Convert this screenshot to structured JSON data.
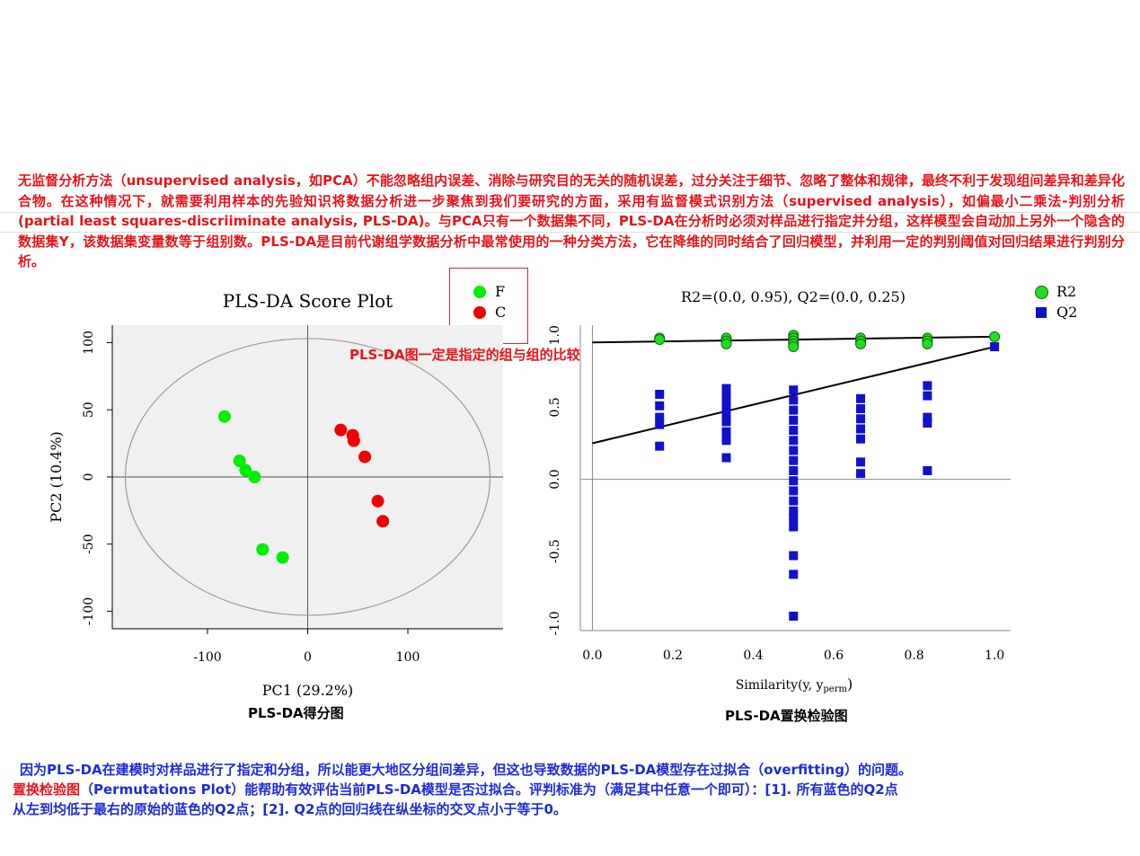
{
  "text": {
    "intro": "无监督分析方法（unsupervised analysis，如PCA）不能忽略组内误差、消除与研究目的无关的随机误差，过分关注于细节、忽略了整体和规律，最终不利于发现组间差异和差异化合物。在这种情况下，就需要利用样本的先验知识将数据分析进一步聚焦到我们要研究的方面，采用有监督模式识别方法（supervised analysis），如偏最小二乘法-判别分析(partial least squares-discriiminate analysis, PLS-DA)。与PCA只有一个数据集不同，PLS-DA在分析时必须对样品进行指定并分组，这样模型会自动加上另外一个隐含的数据集Y，该数据集变量数等于组别数。PLS-DA是目前代谢组学数据分析中最常使用的一种分类方法，它在降维的同时结合了回归模型，并利用一定的判别阈值对回归结果进行判别分析。",
    "annotation": "PLS-DA图一定是指定的组与组的比较",
    "caption_left": "PLS-DA得分图",
    "caption_right": "PLS-DA置换检验图",
    "bottom_line1": "因为PLS-DA在建模时对样品进行了指定和分组，所以能更大地区分组间差异，但这也导致数据的PLS-DA模型存在过拟合（overfitting）的问题。",
    "bottom_line2_colored": "置换检验图",
    "bottom_line2_rest": "（Permutations Plot）能帮助有效评估当前PLS-DA模型是否过拟合。评判标准为（满足其中任意一个即可）：[1]. 所有蓝色的Q2点",
    "bottom_line3": "从左到均低于最右的原始的蓝色的Q2点；[2]. Q2点的回归线在纵坐标的交叉点小于等于0。"
  },
  "colors": {
    "red_text": "#e8141b",
    "blue_text": "#1f2bd6",
    "group_F": "#00ee00",
    "group_C": "#ee0000",
    "R2": "#22dd22",
    "Q2": "#1111cc",
    "panel_bg": "#f0f0f0"
  },
  "chart_data": [
    {
      "type": "scatter",
      "title": "PLS-DA Score Plot",
      "xlabel": "PC1 (29.2%)",
      "ylabel": "PC2 (10.4%)",
      "xlim": [
        -195,
        195
      ],
      "ylim": [
        -113,
        113
      ],
      "xticks": [
        -100,
        0,
        100
      ],
      "yticks": [
        100,
        50,
        0,
        -50,
        -100
      ],
      "ellipse": {
        "cx": 0,
        "cy": 0,
        "rx": 182,
        "ry": 103
      },
      "grid": false,
      "legend_position": "top-right",
      "series": [
        {
          "name": "F",
          "color": "#00ee00",
          "points": [
            [
              -83,
              45
            ],
            [
              -68,
              12
            ],
            [
              -62,
              5
            ],
            [
              -53,
              0
            ],
            [
              -45,
              -54
            ],
            [
              -25,
              -60
            ]
          ]
        },
        {
          "name": "C",
          "color": "#ee0000",
          "points": [
            [
              33,
              35
            ],
            [
              45,
              31
            ],
            [
              46,
              27
            ],
            [
              57,
              15
            ],
            [
              70,
              -18
            ],
            [
              75,
              -33
            ]
          ]
        }
      ]
    },
    {
      "type": "scatter",
      "title": "R2=(0.0, 0.95), Q2=(0.0, 0.25)",
      "xlabel": "Similarity(y, yperm)",
      "xlabel_main": "Similarity(y, y",
      "xlabel_sub": "perm",
      "xlabel_close": ")",
      "ylabel": "",
      "xlim": [
        -0.03,
        1.04
      ],
      "ylim": [
        -1.05,
        1.07
      ],
      "xticks": [
        0.0,
        0.2,
        0.4,
        0.6,
        0.8,
        1.0
      ],
      "xtick_labels": [
        "0.0",
        "0.2",
        "0.4",
        "0.6",
        "0.8",
        "1.0"
      ],
      "yticks": [
        1.0,
        0.5,
        0.0,
        -0.5,
        -1.0
      ],
      "ytick_labels": [
        "1.0",
        "0.5",
        "0.0",
        "-0.5",
        "-1.0"
      ],
      "legend_position": "top-right",
      "regression_lines": [
        {
          "name": "R2",
          "intercept": 0.95,
          "end": [
            1.0,
            0.99
          ]
        },
        {
          "name": "Q2",
          "intercept": 0.25,
          "end": [
            1.0,
            0.92
          ]
        }
      ],
      "series": [
        {
          "name": "R2",
          "marker": "circle",
          "color": "#22dd22",
          "points": [
            [
              0.167,
              0.98
            ],
            [
              0.167,
              0.97
            ],
            [
              0.333,
              0.98
            ],
            [
              0.333,
              0.96
            ],
            [
              0.333,
              0.94
            ],
            [
              0.5,
              1.0
            ],
            [
              0.5,
              0.98
            ],
            [
              0.5,
              0.96
            ],
            [
              0.5,
              0.94
            ],
            [
              0.5,
              0.92
            ],
            [
              0.667,
              0.98
            ],
            [
              0.667,
              0.96
            ],
            [
              0.667,
              0.94
            ],
            [
              0.833,
              0.98
            ],
            [
              0.833,
              0.96
            ],
            [
              0.833,
              0.94
            ],
            [
              1.0,
              0.99
            ]
          ]
        },
        {
          "name": "Q2",
          "marker": "square",
          "color": "#1111cc",
          "points": [
            [
              0.167,
              0.59
            ],
            [
              0.167,
              0.51
            ],
            [
              0.167,
              0.43
            ],
            [
              0.167,
              0.38
            ],
            [
              0.167,
              0.23
            ],
            [
              0.333,
              0.63
            ],
            [
              0.333,
              0.58
            ],
            [
              0.333,
              0.52
            ],
            [
              0.333,
              0.46
            ],
            [
              0.333,
              0.4
            ],
            [
              0.333,
              0.33
            ],
            [
              0.333,
              0.27
            ],
            [
              0.333,
              0.15
            ],
            [
              0.5,
              0.62
            ],
            [
              0.5,
              0.55
            ],
            [
              0.5,
              0.48
            ],
            [
              0.5,
              0.41
            ],
            [
              0.5,
              0.34
            ],
            [
              0.5,
              0.27
            ],
            [
              0.5,
              0.2
            ],
            [
              0.5,
              0.13
            ],
            [
              0.5,
              0.06
            ],
            [
              0.5,
              -0.01
            ],
            [
              0.5,
              -0.08
            ],
            [
              0.5,
              -0.15
            ],
            [
              0.5,
              -0.22
            ],
            [
              0.5,
              -0.27
            ],
            [
              0.5,
              -0.33
            ],
            [
              0.5,
              -0.53
            ],
            [
              0.5,
              -0.66
            ],
            [
              0.5,
              -0.95
            ],
            [
              0.667,
              0.56
            ],
            [
              0.667,
              0.49
            ],
            [
              0.667,
              0.42
            ],
            [
              0.667,
              0.35
            ],
            [
              0.667,
              0.28
            ],
            [
              0.667,
              0.12
            ],
            [
              0.667,
              0.04
            ],
            [
              0.833,
              0.65
            ],
            [
              0.833,
              0.58
            ],
            [
              0.833,
              0.43
            ],
            [
              0.833,
              0.39
            ],
            [
              0.833,
              0.06
            ],
            [
              1.0,
              0.92
            ]
          ]
        }
      ]
    }
  ]
}
